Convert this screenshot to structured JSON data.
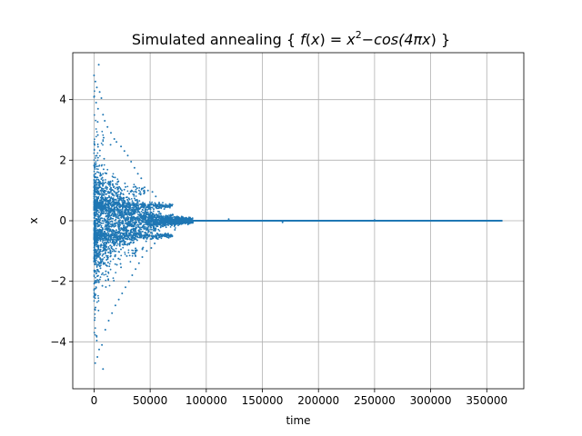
{
  "chart_data": {
    "type": "scatter",
    "title": "Simulated annealing { f(x) = x²−cos(4πx) }",
    "title_parts": {
      "prefix": "Simulated annealing { ",
      "f": "f",
      "open": "(",
      "x1": "x",
      "close_eq": ") = ",
      "x2": "x",
      "sup": "2",
      "minus_cos": "−cos(4",
      "pi": "π",
      "x3": "x",
      "suffix": ") }"
    },
    "xlabel": "time",
    "ylabel": "x",
    "xlim": [
      -19000,
      383000
    ],
    "ylim": [
      -5.55,
      5.55
    ],
    "xticks": [
      0,
      50000,
      100000,
      150000,
      200000,
      250000,
      300000,
      350000
    ],
    "xtick_labels": [
      "0",
      "50000",
      "100000",
      "150000",
      "200000",
      "250000",
      "300000",
      "350000"
    ],
    "yticks": [
      -4,
      -2,
      0,
      2,
      4
    ],
    "ytick_labels": [
      "−4",
      "−2",
      "0",
      "2",
      "4"
    ],
    "grid": true,
    "color": "#1f77b4",
    "series": [
      {
        "points": [
          [
            0,
            4.8
          ],
          [
            1200,
            4.6
          ],
          [
            2500,
            4.4
          ],
          [
            4200,
            5.15
          ],
          [
            5000,
            4.25
          ],
          [
            6500,
            4.05
          ],
          [
            1800,
            3.9
          ],
          [
            3500,
            3.7
          ],
          [
            8000,
            3.5
          ],
          [
            9500,
            3.3
          ],
          [
            12000,
            3.1
          ],
          [
            15000,
            2.9
          ],
          [
            18000,
            2.7
          ],
          [
            20000,
            2.6
          ],
          [
            24000,
            2.45
          ],
          [
            27000,
            2.3
          ],
          [
            30000,
            2.15
          ],
          [
            33000,
            1.95
          ],
          [
            36000,
            1.75
          ],
          [
            39000,
            1.55
          ],
          [
            42000,
            1.4
          ],
          [
            45000,
            1.1
          ],
          [
            48000,
            1.0
          ],
          [
            52000,
            0.95
          ],
          [
            55000,
            0.8
          ],
          [
            58000,
            0.6
          ],
          [
            62000,
            0.5
          ],
          [
            66000,
            0.45
          ],
          [
            70000,
            0.2
          ],
          [
            75000,
            0.1
          ],
          [
            80000,
            0.05
          ],
          [
            120000,
            0.05
          ],
          [
            150000,
            0.0
          ],
          [
            168000,
            -0.05
          ],
          [
            250000,
            0.02
          ],
          [
            1000,
            -4.7
          ],
          [
            3000,
            -4.5
          ],
          [
            4500,
            -4.25
          ],
          [
            7000,
            -4.1
          ],
          [
            8000,
            -4.9
          ],
          [
            2200,
            -3.8
          ],
          [
            10000,
            -3.6
          ],
          [
            13000,
            -3.3
          ],
          [
            16000,
            -3.05
          ],
          [
            19000,
            -2.8
          ],
          [
            22000,
            -2.6
          ],
          [
            25000,
            -2.4
          ],
          [
            28000,
            -2.2
          ],
          [
            31000,
            -2.0
          ],
          [
            34000,
            -1.8
          ],
          [
            37000,
            -1.6
          ],
          [
            40000,
            -1.4
          ],
          [
            43000,
            -1.2
          ],
          [
            47000,
            -1.0
          ],
          [
            51000,
            -0.9
          ],
          [
            54000,
            -0.75
          ],
          [
            57000,
            -0.6
          ],
          [
            61000,
            -0.5
          ],
          [
            65000,
            -0.45
          ],
          [
            72000,
            -0.3
          ],
          [
            78000,
            -0.1
          ]
        ]
      }
    ]
  }
}
